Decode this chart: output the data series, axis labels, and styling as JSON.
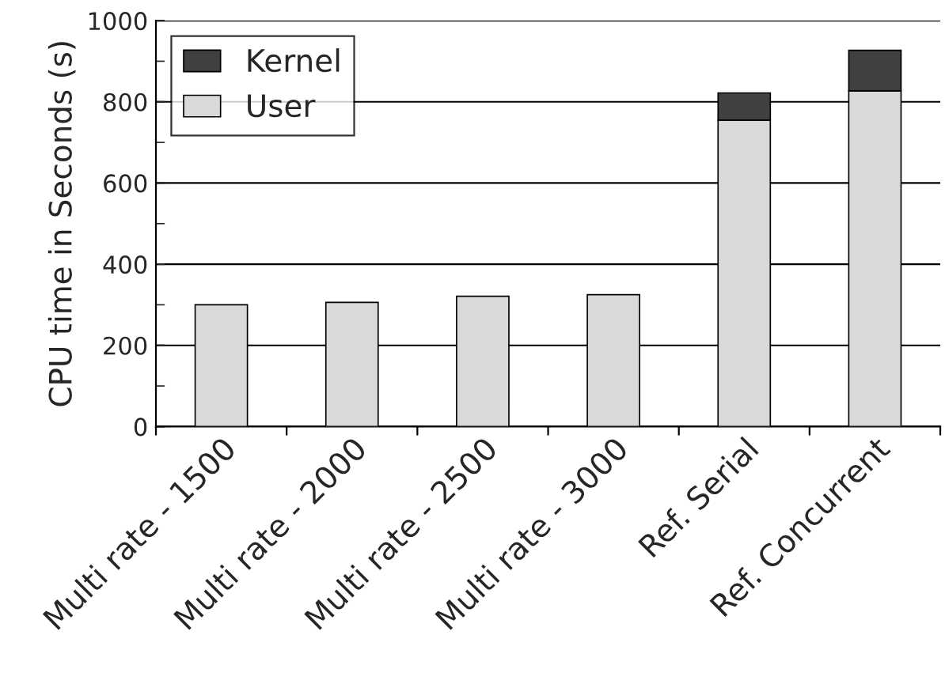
{
  "chart_data": {
    "type": "bar",
    "stacked": true,
    "ylabel": "CPU time in Seconds (s)",
    "categories": [
      "Multi rate - 1500",
      "Multi rate - 2000",
      "Multi rate - 2500",
      "Multi rate - 3000",
      "Ref. Serial",
      "Ref. Concurrent"
    ],
    "series": [
      {
        "name": "User",
        "color": "#d9d9d9",
        "values": [
          300,
          306,
          321,
          325,
          755,
          827
        ]
      },
      {
        "name": "Kernel",
        "color": "#404040",
        "values": [
          0,
          0,
          0,
          0,
          67,
          100
        ]
      }
    ],
    "ylim": [
      0,
      1000
    ],
    "yticks": [
      0,
      {
        "value": 100,
        "label": null
      },
      200,
      {
        "value": 300,
        "label": null
      },
      400,
      {
        "value": 500,
        "label": null
      },
      600,
      {
        "value": 700,
        "label": null
      },
      800,
      {
        "value": 900,
        "label": null
      },
      1000
    ],
    "grid": "y",
    "legend": "top left"
  }
}
